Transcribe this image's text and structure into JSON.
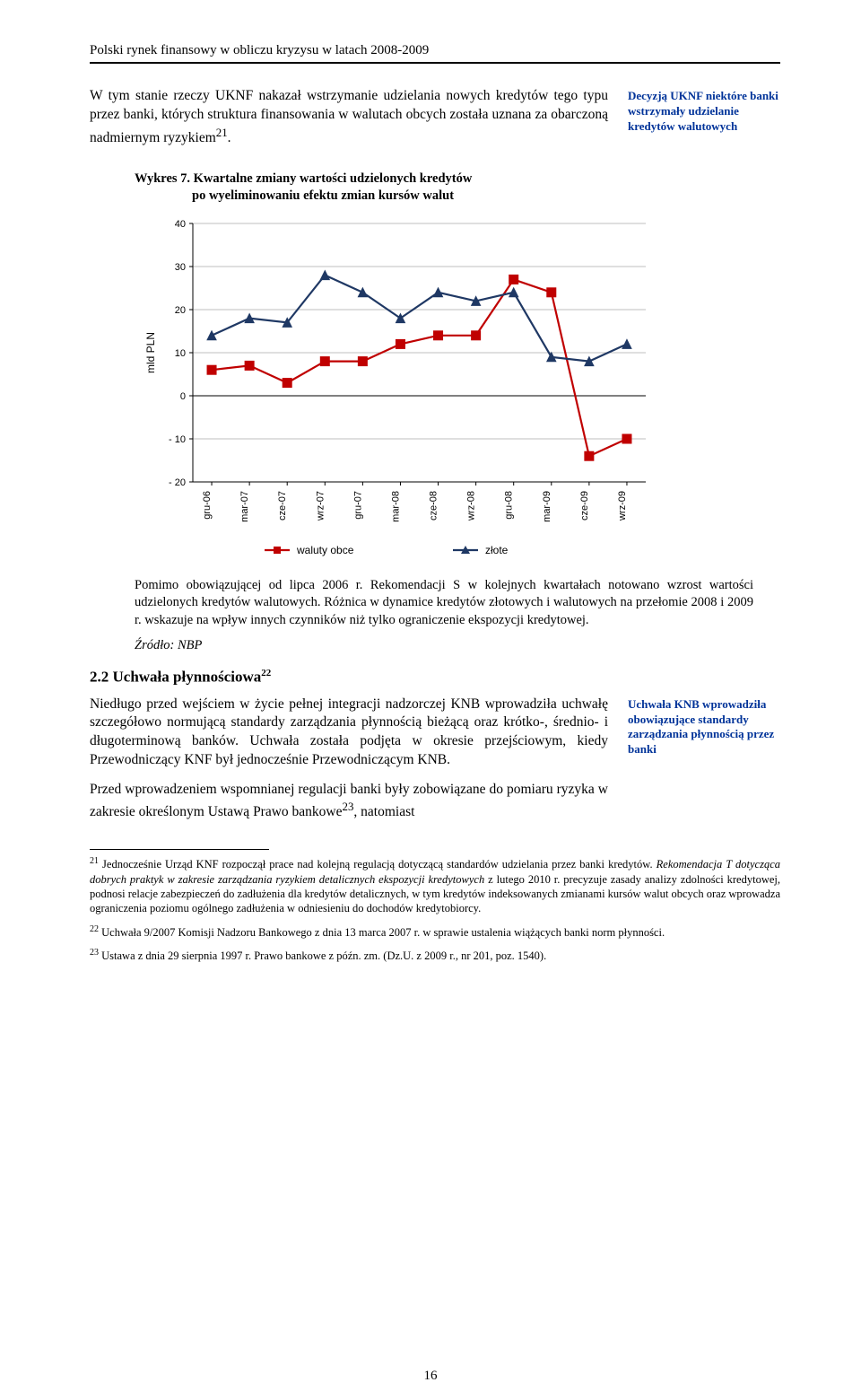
{
  "running_header": "Polski rynek finansowy w obliczu kryzysu w latach 2008-2009",
  "para1": "W tym stanie rzeczy UKNF nakazał wstrzymanie udzielania nowych kredytów tego typu przez banki, których struktura finansowania w walutach obcych została uznana za obarczoną nadmiernym ryzykiem",
  "para1_fn": "21",
  "para1_end": ".",
  "side_note_1": "Decyzją UKNF niektóre banki wstrzymały udzielanie kredytów walutowych",
  "chart": {
    "title_line1": "Wykres 7. Kwartalne zmiany wartości udzielonych kredytów",
    "title_line2": "po wyeliminowaniu efektu zmian kursów walut",
    "ylabel": "mld PLN",
    "categories": [
      "gru-06",
      "mar-07",
      "cze-07",
      "wrz-07",
      "gru-07",
      "mar-08",
      "cze-08",
      "wrz-08",
      "gru-08",
      "mar-09",
      "cze-09",
      "wrz-09"
    ],
    "series": [
      {
        "name": "waluty obce",
        "color": "#c00000",
        "marker": "square",
        "values": [
          6,
          7,
          3,
          8,
          8,
          12,
          14,
          14,
          27,
          24,
          -14,
          -10
        ]
      },
      {
        "name": "złote",
        "color": "#1f3864",
        "marker": "triangle",
        "values": [
          14,
          18,
          17,
          28,
          24,
          18,
          24,
          22,
          24,
          9,
          8,
          12
        ]
      }
    ],
    "ylim": [
      -20,
      40
    ],
    "ytick_step": 10,
    "background_color": "#ffffff",
    "grid_color": "#bfbfbf",
    "line_width": 2.2,
    "marker_size": 5
  },
  "chart_caption": "Pomimo obowiązującej od lipca 2006 r. Rekomendacji S w kolejnych kwartałach notowano wzrost wartości udzielonych kredytów walutowych. Różnica w dynamice kredytów złotowych i walutowych na przełomie 2008 i 2009 r. wskazuje na wpływ innych czynników niż tylko ograniczenie ekspozycji kredytowej.",
  "source": "Źródło: NBP",
  "section_heading": "2.2 Uchwała płynnościowa",
  "section_heading_fn": "22",
  "para2": "Niedługo przed wejściem w życie pełnej integracji nadzorczej KNB wprowadziła uchwałę szczegółowo normującą standardy zarządzania płynnością bieżącą oraz krótko-, średnio- i długoterminową banków. Uchwała została podjęta w okresie przejściowym, kiedy Przewodniczący KNF był jednocześnie Przewodniczącym KNB.",
  "side_note_2": "Uchwała KNB wprowadziła obowiązujące standardy zarządzania płynnością przez banki",
  "para3_a": "Przed wprowadzeniem wspomnianej regulacji banki były zobowiązane do pomiaru ryzyka w zakresie określonym Ustawą Prawo bankowe",
  "para3_fn": "23",
  "para3_b": ", natomiast",
  "footnotes": {
    "fn21": "Jednocześnie Urząd KNF rozpoczął prace nad kolejną regulacją dotyczącą standardów udzielania przez banki kredytów. Rekomendacja T dotycząca dobrych praktyk w zakresie zarządzania ryzykiem detalicznych ekspozycji kredytowych z lutego 2010 r. precyzuje zasady analizy zdolności kredytowej, podnosi relacje zabezpieczeń do zadłużenia dla kredytów detalicznych, w tym kredytów indeksowanych zmianami kursów walut obcych oraz wprowadza ograniczenia poziomu ogólnego zadłużenia w odniesieniu do dochodów kredytobiorcy.",
    "fn22": "Uchwała 9/2007 Komisji Nadzoru Bankowego z dnia 13 marca 2007 r. w sprawie ustalenia wiążących banki norm płynności.",
    "fn23": "Ustawa z dnia 29 sierpnia 1997 r. Prawo bankowe z późn. zm. (Dz.U. z 2009 r., nr 201, poz. 1540)."
  },
  "page_number": "16"
}
